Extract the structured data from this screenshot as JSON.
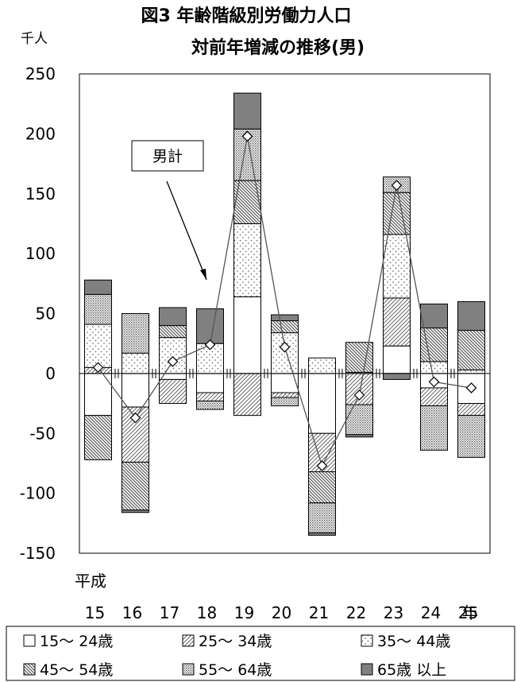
{
  "chart_data": {
    "type": "bar",
    "stacked": true,
    "title": "図3 年齢階級別労働力人口",
    "subtitle": "対前年増減の推移(男)",
    "ylabel": "千人",
    "xlabel": "平成",
    "x_suffix": "年",
    "ylim": [
      -150,
      250
    ],
    "yticks": [
      "250",
      "200",
      "150",
      "100",
      "50",
      "0",
      "-50",
      "-100",
      "-150"
    ],
    "categories": [
      "15",
      "16",
      "17",
      "18",
      "19",
      "20",
      "21",
      "22",
      "23",
      "24",
      "25"
    ],
    "series": [
      {
        "name": "15～ 24歳",
        "values": [
          -35,
          -28,
          -5,
          -16,
          64,
          -16,
          -50,
          1,
          23,
          -12,
          -25
        ]
      },
      {
        "name": "25～ 34歳",
        "values": [
          5,
          -46,
          -20,
          -7,
          -35,
          -4,
          -32,
          -26,
          40,
          -15,
          -10
        ]
      },
      {
        "name": "35～ 44歳",
        "values": [
          36,
          17,
          30,
          25,
          61,
          34,
          13,
          0,
          53,
          10,
          3
        ]
      },
      {
        "name": "45～ 54歳",
        "values": [
          -37,
          -40,
          10,
          0,
          36,
          10,
          -26,
          25,
          35,
          28,
          33
        ]
      },
      {
        "name": "55～ 64歳",
        "values": [
          25,
          33,
          0,
          -7,
          43,
          -7,
          -25,
          -25,
          13,
          -37,
          -35
        ]
      },
      {
        "name": "65歳 以上",
        "values": [
          12,
          -2,
          15,
          29,
          30,
          5,
          -2,
          -2,
          -5,
          20,
          24
        ]
      }
    ],
    "total_series": {
      "name": "男計",
      "values": [
        5,
        -37,
        10,
        24,
        198,
        22,
        -77,
        -18,
        157,
        -7,
        -12
      ]
    },
    "annotation": "男計",
    "legend_position": "bottom",
    "grid": false,
    "colors": {
      "fill_15_24": "#ffffff",
      "fill_25_34": "#dddddd",
      "fill_35_44": "#ffffff",
      "fill_45_54": "#dddddd",
      "fill_55_64": "#dddddd",
      "fill_65": "#808080",
      "line": "#555555",
      "axis": "#000000"
    }
  }
}
